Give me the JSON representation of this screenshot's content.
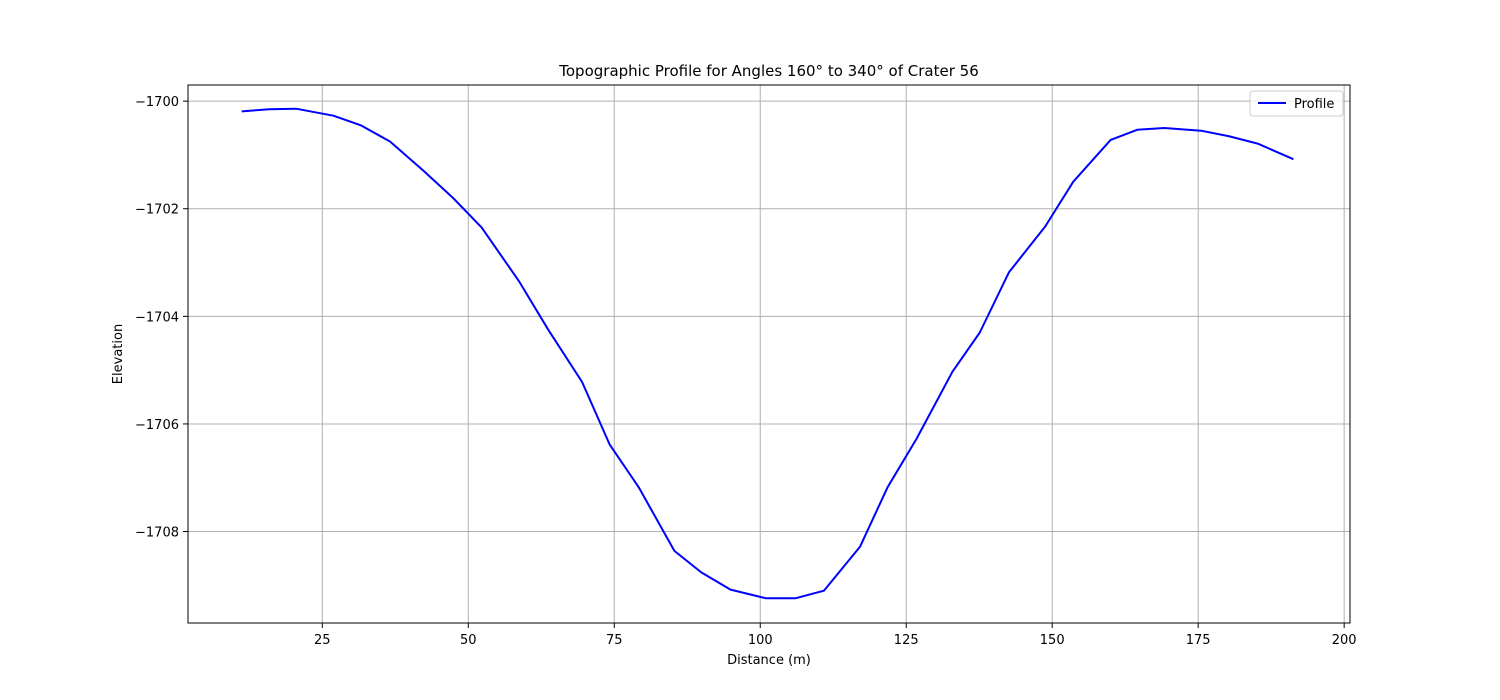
{
  "chart_data": {
    "type": "line",
    "title": "Topographic Profile for Angles 160° to 340° of Crater 56",
    "xlabel": "Distance (m)",
    "ylabel": "Elevation",
    "xlim": [
      2.0,
      201.0
    ],
    "ylim": [
      -1709.7,
      -1699.7
    ],
    "xticks": [
      25,
      50,
      75,
      100,
      125,
      150,
      175,
      200
    ],
    "yticks": [
      -1700,
      -1702,
      -1704,
      -1706,
      -1708
    ],
    "xtick_labels": [
      "25",
      "50",
      "75",
      "100",
      "125",
      "150",
      "175",
      "200"
    ],
    "ytick_labels": [
      "−1700",
      "−1702",
      "−1704",
      "−1706",
      "−1708"
    ],
    "grid": true,
    "legend_position": "top-right",
    "series": [
      {
        "name": "Profile",
        "color": "#0000ff",
        "x": [
          11.2,
          15.9,
          20.5,
          26.9,
          31.6,
          36.6,
          42.4,
          47.4,
          52.3,
          58.7,
          63.7,
          69.5,
          74.2,
          79.2,
          85.3,
          89.9,
          94.9,
          101.0,
          106.0,
          110.9,
          117.1,
          121.8,
          126.8,
          132.9,
          137.6,
          142.6,
          148.8,
          153.6,
          160.0,
          164.6,
          169.2,
          175.5,
          180.2,
          185.2,
          191.3
        ],
        "y": [
          -1700.19,
          -1700.15,
          -1700.14,
          -1700.27,
          -1700.45,
          -1700.75,
          -1701.3,
          -1701.8,
          -1702.35,
          -1703.35,
          -1704.25,
          -1705.22,
          -1706.38,
          -1707.18,
          -1708.36,
          -1708.76,
          -1709.08,
          -1709.24,
          -1709.24,
          -1709.1,
          -1708.28,
          -1707.18,
          -1706.27,
          -1705.03,
          -1704.3,
          -1703.18,
          -1702.33,
          -1701.5,
          -1700.72,
          -1700.53,
          -1700.5,
          -1700.55,
          -1700.65,
          -1700.79,
          -1701.08
        ]
      }
    ]
  }
}
